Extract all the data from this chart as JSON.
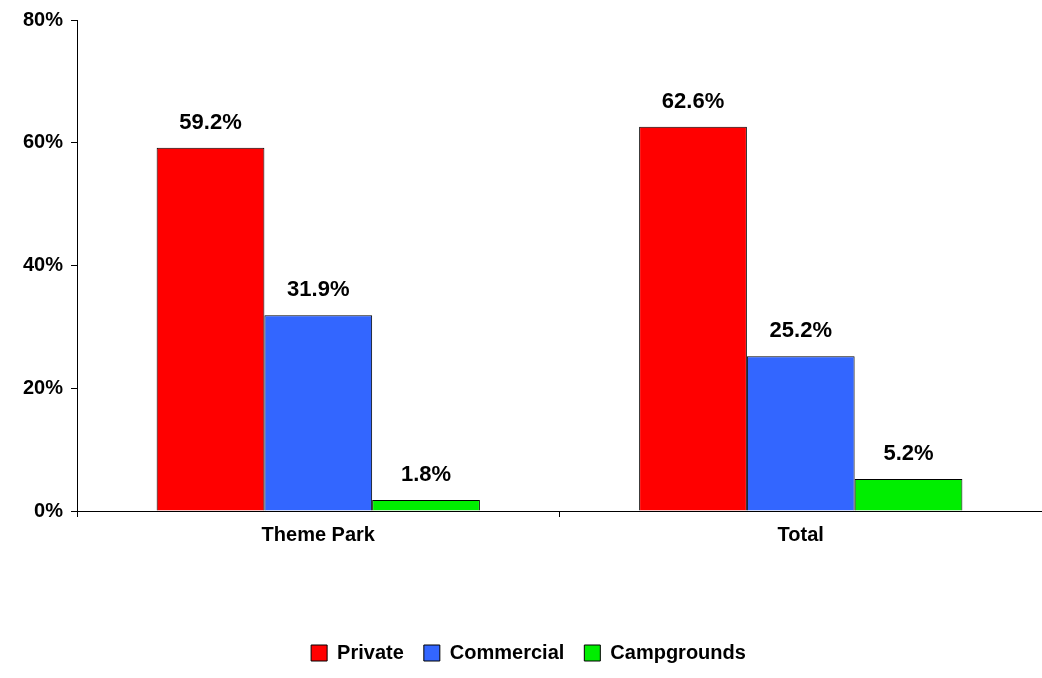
{
  "chart_data": {
    "type": "bar",
    "categories": [
      "Theme Park",
      "Total"
    ],
    "series": [
      {
        "name": "Private",
        "color": "#ff0000",
        "values": [
          59.2,
          62.6
        ],
        "value_labels": [
          "59.2%",
          "62.6%"
        ]
      },
      {
        "name": "Commercial",
        "color": "#3366ff",
        "values": [
          31.9,
          25.2
        ],
        "value_labels": [
          "31.9%",
          "25.2%"
        ]
      },
      {
        "name": "Campgrounds",
        "color": "#00ee00",
        "values": [
          1.8,
          5.2
        ],
        "value_labels": [
          "1.8%",
          "5.2%"
        ]
      }
    ],
    "ylim": [
      0,
      80
    ],
    "yticks": [
      {
        "value": 0,
        "label": "0%"
      },
      {
        "value": 20,
        "label": "20%"
      },
      {
        "value": 40,
        "label": "40%"
      },
      {
        "value": 60,
        "label": "60%"
      },
      {
        "value": 80,
        "label": "80%"
      }
    ],
    "legend": "bottom"
  }
}
